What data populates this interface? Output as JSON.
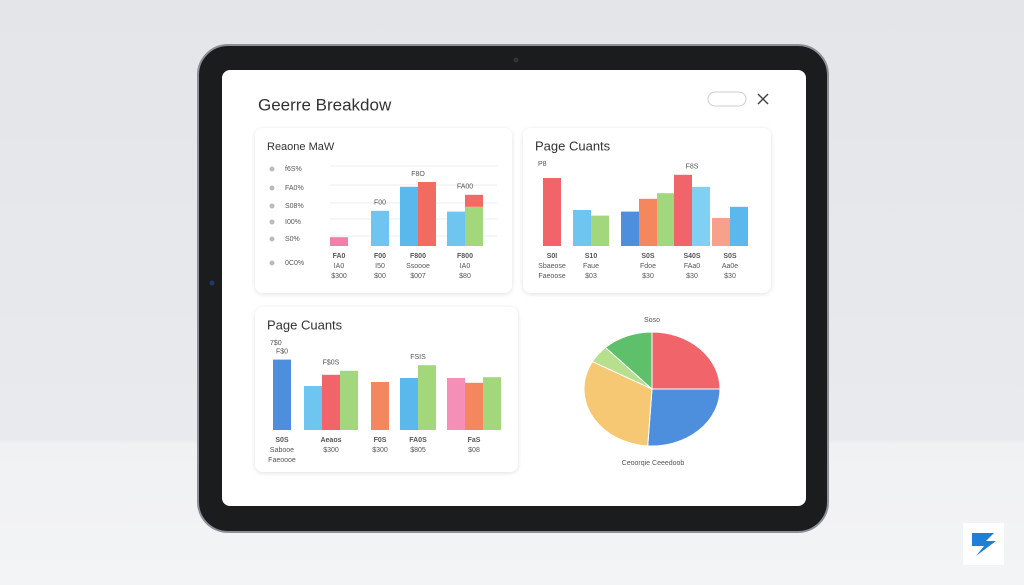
{
  "header": {
    "title": "Geerre Breakdow"
  },
  "panels": [
    {
      "title": "Reaone MaW",
      "axis_labels": [
        "f6S%",
        "FA0%",
        "S08%",
        "I00%",
        "S0%",
        "0C0%"
      ],
      "groups": [
        {
          "labels": [
            "FA0",
            "IA0",
            "$300"
          ],
          "bars": [
            {
              "color": "#f27fa8",
              "value": 11
            }
          ]
        },
        {
          "top": "F00",
          "labels": [
            "F00",
            "I50",
            "$00"
          ],
          "bars": [
            {
              "color": "#6ec6f0",
              "value": 44
            }
          ]
        },
        {
          "top": "F8O",
          "labels": [
            "F800",
            "Ssoooe",
            "$007"
          ],
          "bars": [
            {
              "color": "#5ab8ec",
              "value": 74
            },
            {
              "color": "#f26b62",
              "value": 80
            }
          ]
        },
        {
          "top": "FA00",
          "labels": [
            "F800",
            "IA0",
            "$80"
          ],
          "bars": [
            {
              "color": "#6ec6f0",
              "value": 43
            },
            {
              "segments": [
                {
                  "color": "#a3d77c",
                  "value": 49
                },
                {
                  "color": "#f26b62",
                  "value": 15
                }
              ]
            }
          ]
        }
      ]
    },
    {
      "title": "Page Cuants",
      "note": "P8",
      "groups": [
        {
          "labels": [
            "S0I",
            "Sbaeose",
            "Faeoose"
          ],
          "bars": [
            {
              "color": "#f0646a",
              "value": 85
            }
          ]
        },
        {
          "labels": [
            "S10",
            "Faue",
            "$03"
          ],
          "bars": [
            {
              "color": "#6ec6f0",
              "value": 45
            },
            {
              "color": "#a3d77c",
              "value": 38
            }
          ]
        },
        {
          "labels": [
            "S0S",
            "Fdoe",
            "$30"
          ],
          "bars": [
            {
              "color": "#4d8fdd",
              "value": 43
            },
            {
              "color": "#f5875f",
              "value": 59
            },
            {
              "color": "#a3d77c",
              "value": 66
            }
          ]
        },
        {
          "top": "F8S",
          "labels": [
            "S40S",
            "FAa0",
            "$30"
          ],
          "bars": [
            {
              "color": "#f0646a",
              "value": 89
            },
            {
              "color": "#7fd0f2",
              "value": 74
            }
          ]
        },
        {
          "labels": [
            "S0S",
            "Aa0e",
            "$30"
          ],
          "bars": [
            {
              "color": "#f7a08a",
              "value": 35
            },
            {
              "color": "#5ab8ec",
              "value": 49
            }
          ]
        }
      ]
    },
    {
      "title": "Page Cuants",
      "note": "7$0",
      "groups": [
        {
          "top": "F$0",
          "labels": [
            "S0S",
            "Sabooe",
            "Faeoooe"
          ],
          "bars": [
            {
              "color": "#4d8fdd",
              "value": 88
            }
          ]
        },
        {
          "top": "F$0S",
          "labels": [
            "Aeaos",
            "$300"
          ],
          "bars": [
            {
              "color": "#6ec6f0",
              "value": 55
            },
            {
              "color": "#f0646a",
              "value": 69
            },
            {
              "color": "#a3d77c",
              "value": 74
            }
          ]
        },
        {
          "labels": [
            "F0S",
            "$300"
          ],
          "bars": [
            {
              "color": "#f5875f",
              "value": 60
            }
          ]
        },
        {
          "top": "FSIS",
          "labels": [
            "FA0S",
            "$805"
          ],
          "bars": [
            {
              "color": "#5ab8ec",
              "value": 65
            },
            {
              "color": "#a3d77c",
              "value": 81
            }
          ]
        },
        {
          "labels": [
            "FaS",
            "$08"
          ],
          "bars": [
            {
              "color": "#f58fb8",
              "value": 65
            },
            {
              "color": "#f5875f",
              "value": 59
            },
            {
              "color": "#a3d77c",
              "value": 66
            }
          ]
        }
      ]
    }
  ],
  "pie": {
    "title": "Soso",
    "caption": "Ceoorqie Ceeedoob",
    "slices": [
      {
        "color": "#f0646a",
        "value": 25
      },
      {
        "color": "#4d8fdd",
        "value": 26
      },
      {
        "color": "#f7c873",
        "value": 32
      },
      {
        "color": "#b6df8e",
        "value": 5
      },
      {
        "color": "#5ec06a",
        "value": 12
      }
    ]
  }
}
